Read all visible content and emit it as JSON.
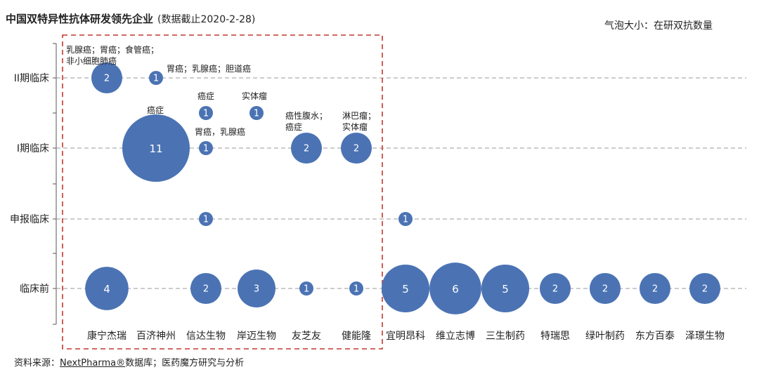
{
  "header": {
    "title": "中国双特异性抗体研发领先企业",
    "subtitle": "(数据截止2020-2-28)",
    "legend_note": "气泡大小：在研双抗数量"
  },
  "source": {
    "prefix": "资料来源：",
    "brand": "NextPharma®",
    "suffix": "数据库；医药魔方研究与分析"
  },
  "colors": {
    "bubble": "#4b73b4",
    "grid": "#999999",
    "highlight_box": "#c0392b"
  },
  "chart_data": {
    "type": "scatter",
    "title": "中国双特异性抗体研发领先企业",
    "xlabel": "",
    "ylabel": "",
    "bubble_size_meaning": "在研双抗数量",
    "x_categories": [
      "康宁杰瑞",
      "百济神州",
      "信达生物",
      "岸迈生物",
      "友芝友",
      "健能隆",
      "宜明昂科",
      "维立志博",
      "三生制药",
      "特瑞思",
      "绿叶制药",
      "东方百泰",
      "泽璟生物"
    ],
    "y_categories": [
      "临床前",
      "申报临床",
      "I期临床",
      "II期临床"
    ],
    "points": [
      {
        "company": "康宁杰瑞",
        "stage": "II期临床",
        "count": 2,
        "annotation": [
          "乳腺癌；胃癌；食管癌；",
          "非小细胞肺癌"
        ]
      },
      {
        "company": "百济神州",
        "stage": "II期临床",
        "count": 1,
        "annotation": [
          "胃癌；乳腺癌；胆道癌"
        ]
      },
      {
        "company": "信达生物",
        "stage": "I期临床",
        "count": 1,
        "offset": 1,
        "annotation": [
          "癌症"
        ]
      },
      {
        "company": "岸迈生物",
        "stage": "I期临床",
        "count": 1,
        "offset": 1,
        "annotation": [
          "实体瘤"
        ]
      },
      {
        "company": "百济神州",
        "stage": "I期临床",
        "count": 11,
        "annotation": [
          "癌症"
        ]
      },
      {
        "company": "信达生物",
        "stage": "I期临床",
        "count": 1,
        "annotation": [
          "胃癌，乳腺癌"
        ]
      },
      {
        "company": "友芝友",
        "stage": "I期临床",
        "count": 2,
        "annotation": [
          "癌性腹水；",
          "癌症"
        ]
      },
      {
        "company": "健能隆",
        "stage": "I期临床",
        "count": 2,
        "annotation": [
          "淋巴瘤；",
          "实体瘤"
        ]
      },
      {
        "company": "信达生物",
        "stage": "申报临床",
        "count": 1
      },
      {
        "company": "宜明昂科",
        "stage": "申报临床",
        "count": 1
      },
      {
        "company": "康宁杰瑞",
        "stage": "临床前",
        "count": 4
      },
      {
        "company": "信达生物",
        "stage": "临床前",
        "count": 2
      },
      {
        "company": "岸迈生物",
        "stage": "临床前",
        "count": 3
      },
      {
        "company": "友芝友",
        "stage": "临床前",
        "count": 1
      },
      {
        "company": "健能隆",
        "stage": "临床前",
        "count": 1
      },
      {
        "company": "宜明昂科",
        "stage": "临床前",
        "count": 5
      },
      {
        "company": "维立志博",
        "stage": "临床前",
        "count": 6
      },
      {
        "company": "三生制药",
        "stage": "临床前",
        "count": 5
      },
      {
        "company": "特瑞思",
        "stage": "临床前",
        "count": 2
      },
      {
        "company": "绿叶制药",
        "stage": "临床前",
        "count": 2
      },
      {
        "company": "东方百泰",
        "stage": "临床前",
        "count": 2
      },
      {
        "company": "泽璟生物",
        "stage": "临床前",
        "count": 2
      }
    ],
    "grid": "dashed-horizontal",
    "highlighted_companies": [
      "康宁杰瑞",
      "百济神州",
      "信达生物",
      "岸迈生物",
      "友芝友",
      "健能隆"
    ]
  }
}
